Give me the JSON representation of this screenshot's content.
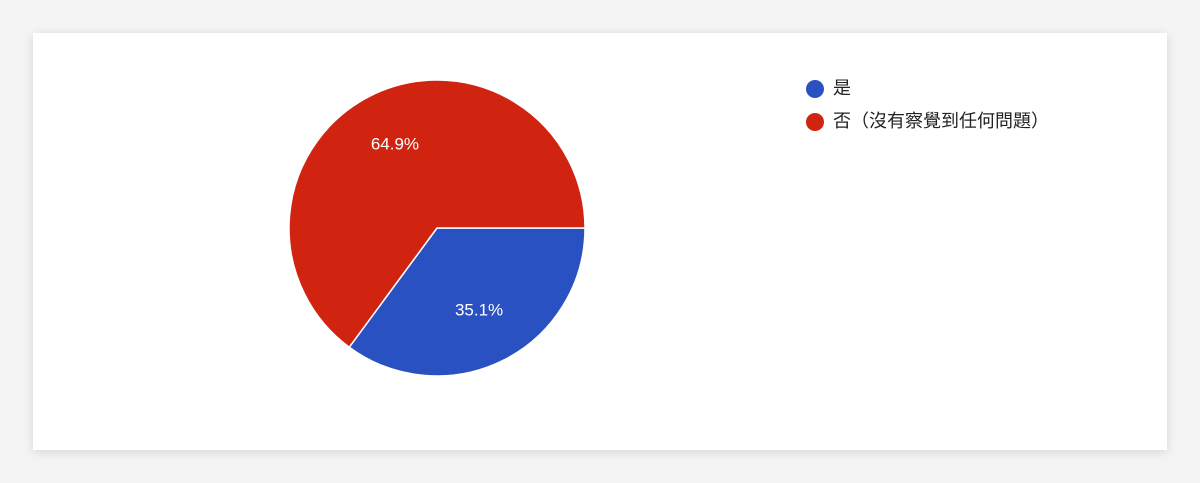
{
  "chart_data": {
    "type": "pie",
    "categories": [
      "是",
      "否（沒有察覺到任何問題）"
    ],
    "values": [
      35.1,
      64.9
    ],
    "value_labels": [
      "35.1%",
      "64.9%"
    ],
    "colors": [
      "#2a51c2",
      "#d12410"
    ]
  }
}
